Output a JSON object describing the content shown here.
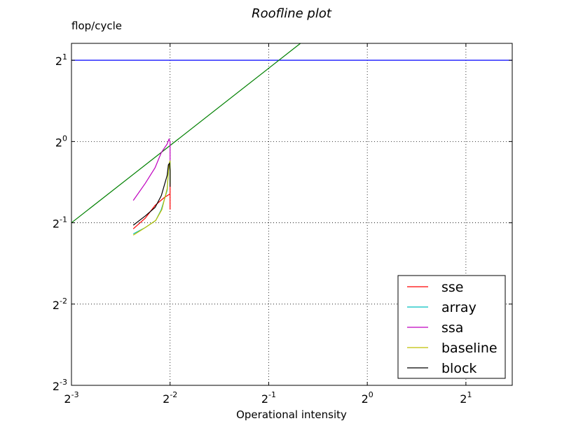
{
  "chart_data": {
    "type": "line",
    "title": "Roofline plot",
    "xlabel": "Operational intensity",
    "ylabel": "flop/cycle",
    "scale": {
      "x": "log2",
      "y": "log2"
    },
    "xlim": [
      0.125,
      2.77
    ],
    "ylim": [
      0.125,
      2.31
    ],
    "grid": true,
    "legend_position": "lower right",
    "x_ticks": [
      {
        "base": "2",
        "exp": "-3",
        "value": 0.125
      },
      {
        "base": "2",
        "exp": "-2",
        "value": 0.25
      },
      {
        "base": "2",
        "exp": "-1",
        "value": 0.5
      },
      {
        "base": "2",
        "exp": "0",
        "value": 1
      },
      {
        "base": "2",
        "exp": "1",
        "value": 2
      }
    ],
    "y_ticks": [
      {
        "base": "2",
        "exp": "-3",
        "value": 0.125
      },
      {
        "base": "2",
        "exp": "-2",
        "value": 0.25
      },
      {
        "base": "2",
        "exp": "-1",
        "value": 0.5
      },
      {
        "base": "2",
        "exp": "0",
        "value": 1
      },
      {
        "base": "2",
        "exp": "1",
        "value": 2
      }
    ],
    "roof_lines": [
      {
        "kind": "compute",
        "color": "#0000ff",
        "x": [
          0.125,
          2.77
        ],
        "y": [
          2,
          2
        ]
      },
      {
        "kind": "bandwidth",
        "color": "#008000",
        "x": [
          0.125,
          0.625
        ],
        "y": [
          0.5,
          2.31
        ]
      }
    ],
    "series": [
      {
        "name": "sse",
        "color": "#ff0000",
        "x": [
          0.193,
          0.21,
          0.225,
          0.24,
          0.25,
          0.25,
          0.25,
          0.25,
          0.25,
          0.25
        ],
        "y": [
          0.475,
          0.52,
          0.58,
          0.62,
          0.64,
          0.66,
          0.7,
          0.8,
          0.6,
          0.56
        ]
      },
      {
        "name": "array",
        "color": "#00bfbf",
        "x": [
          0.193,
          0.21,
          0.226,
          0.235,
          0.245,
          0.248,
          0.25,
          0.25,
          0.25
        ],
        "y": [
          0.455,
          0.48,
          0.51,
          0.56,
          0.66,
          0.82,
          0.85,
          0.8,
          0.7
        ]
      },
      {
        "name": "ssa",
        "color": "#bf00bf",
        "x": [
          0.193,
          0.21,
          0.225,
          0.235,
          0.245,
          0.248,
          0.25,
          0.25,
          0.25,
          0.25
        ],
        "y": [
          0.605,
          0.7,
          0.8,
          0.91,
          0.98,
          1.02,
          1.0,
          0.95,
          0.88,
          0.85
        ]
      },
      {
        "name": "baseline",
        "color": "#bfbf00",
        "x": [
          0.193,
          0.21,
          0.226,
          0.236,
          0.245,
          0.248,
          0.25,
          0.25,
          0.25
        ],
        "y": [
          0.45,
          0.48,
          0.51,
          0.56,
          0.67,
          0.82,
          0.85,
          0.78,
          0.7
        ]
      },
      {
        "name": "block",
        "color": "#000000",
        "x": [
          0.193,
          0.21,
          0.225,
          0.235,
          0.245,
          0.247,
          0.249,
          0.25,
          0.25,
          0.25,
          0.25
        ],
        "y": [
          0.49,
          0.53,
          0.57,
          0.63,
          0.75,
          0.82,
          0.83,
          0.78,
          0.72,
          0.68,
          0.7
        ]
      }
    ]
  }
}
